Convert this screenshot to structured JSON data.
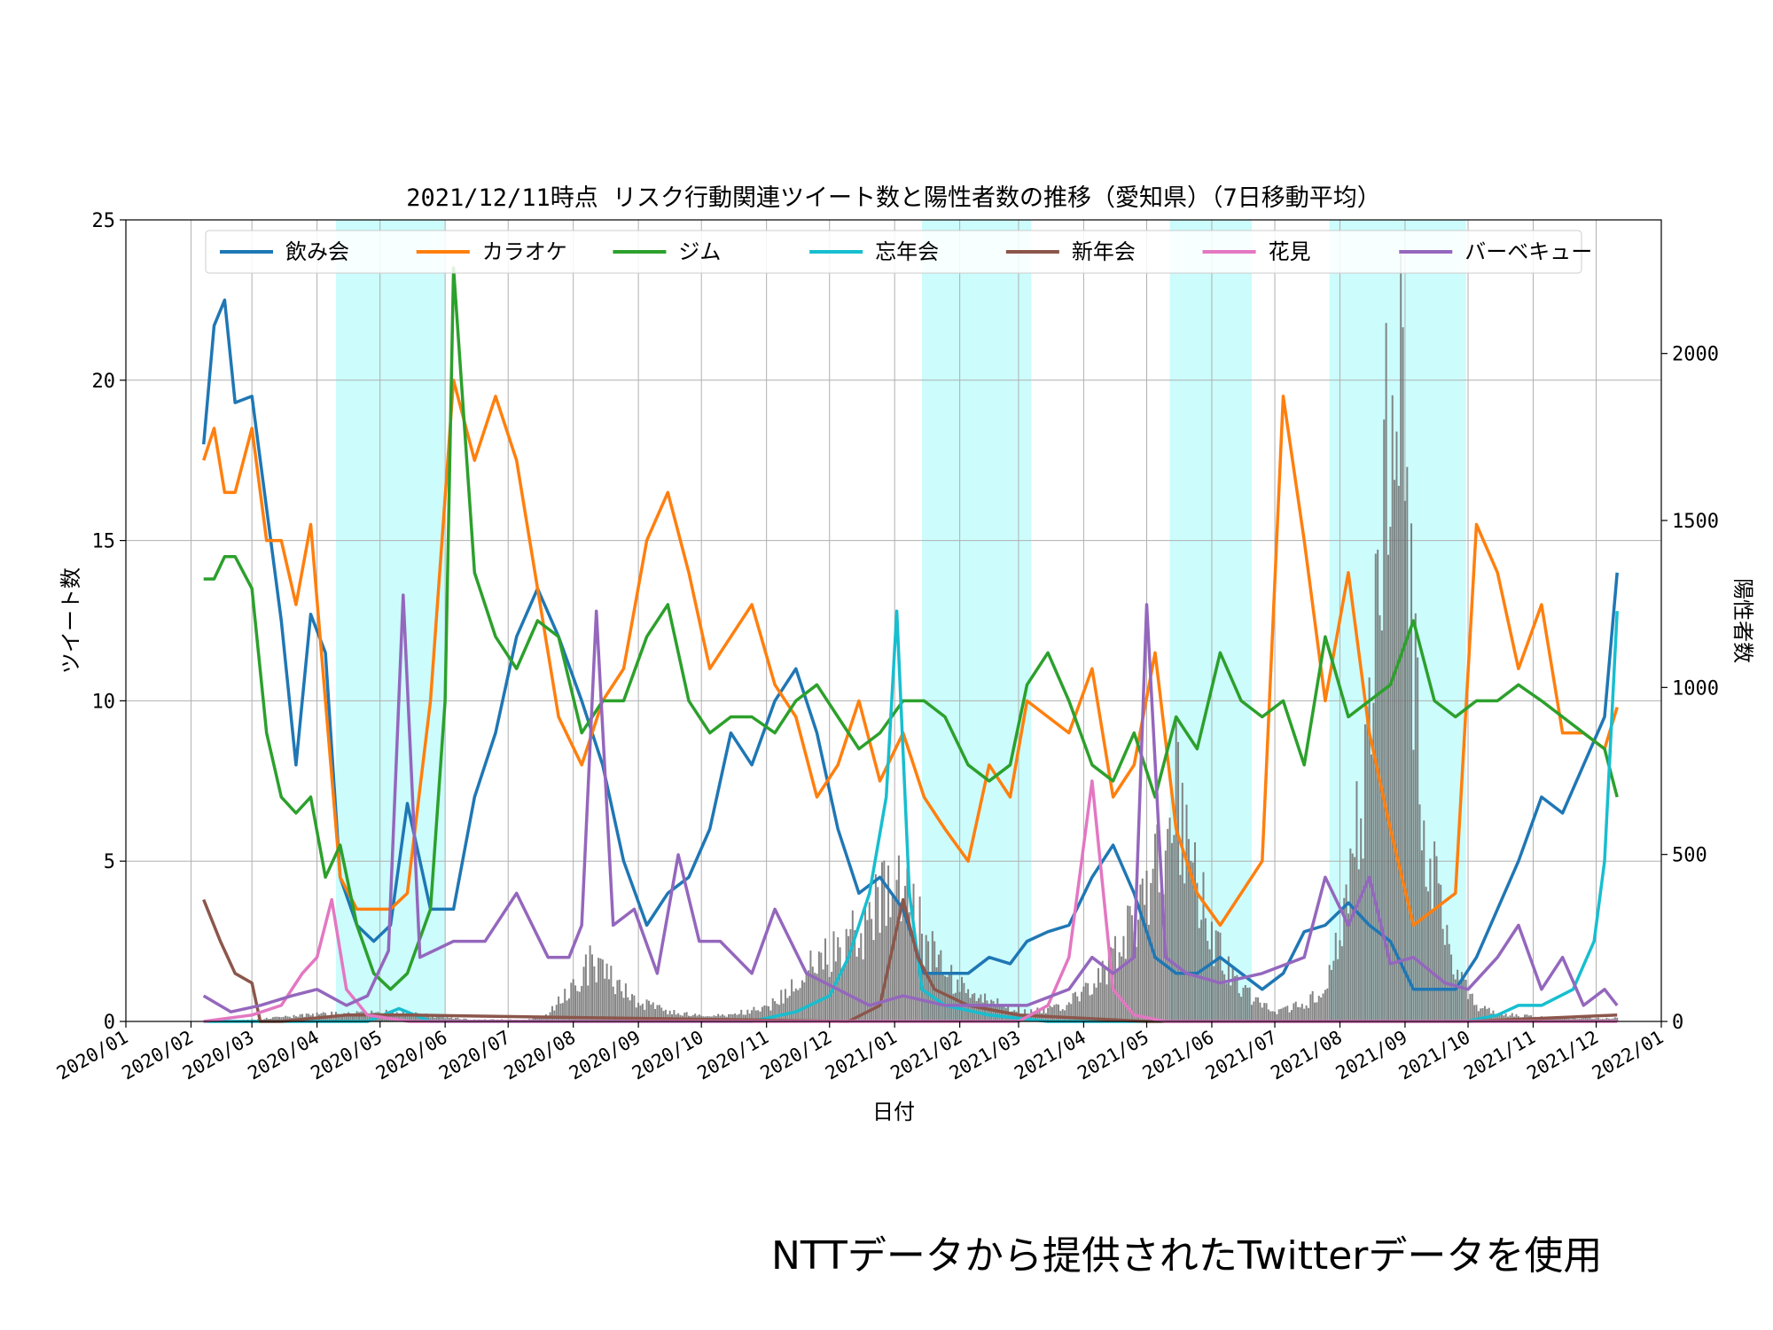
{
  "chart_data": {
    "type": "line",
    "title": "2021/12/11時点 リスク行動関連ツイート数と陽性者数の推移（愛知県）（7日移動平均）",
    "xlabel": "日付",
    "ylabel": "ツイート数",
    "y2label": "陽性者数",
    "xlim": [
      "2020-01-01",
      "2022-01-01"
    ],
    "ylim": [
      0,
      25
    ],
    "y2lim": [
      0,
      2400
    ],
    "xticks": [
      "2020/01",
      "2020/02",
      "2020/03",
      "2020/04",
      "2020/05",
      "2020/06",
      "2020/07",
      "2020/08",
      "2020/09",
      "2020/10",
      "2020/11",
      "2020/12",
      "2021/01",
      "2021/02",
      "2021/03",
      "2021/04",
      "2021/05",
      "2021/06",
      "2021/07",
      "2021/08",
      "2021/09",
      "2021/10",
      "2021/11",
      "2021/12",
      "2022/01"
    ],
    "yticks": [
      0,
      5,
      10,
      15,
      20,
      25
    ],
    "y2ticks": [
      0,
      500,
      1000,
      1500,
      2000
    ],
    "grid": true,
    "legend_position": "top",
    "shaded_periods": [
      [
        "2020-04-10",
        "2020-06-01"
      ],
      [
        "2021-01-14",
        "2021-03-07"
      ],
      [
        "2021-05-12",
        "2021-06-20"
      ],
      [
        "2021-07-27",
        "2021-09-30"
      ]
    ],
    "series": [
      {
        "name": "飲み会",
        "color": "#1f77b4",
        "x": [
          "2020-02-07",
          "2020-02-12",
          "2020-02-17",
          "2020-02-22",
          "2020-03-01",
          "2020-03-08",
          "2020-03-15",
          "2020-03-22",
          "2020-03-29",
          "2020-04-05",
          "2020-04-12",
          "2020-04-20",
          "2020-04-28",
          "2020-05-06",
          "2020-05-14",
          "2020-05-25",
          "2020-06-05",
          "2020-06-15",
          "2020-06-25",
          "2020-07-05",
          "2020-07-15",
          "2020-07-25",
          "2020-08-05",
          "2020-08-15",
          "2020-08-25",
          "2020-09-05",
          "2020-09-15",
          "2020-09-25",
          "2020-10-05",
          "2020-10-15",
          "2020-10-25",
          "2020-11-05",
          "2020-11-15",
          "2020-11-25",
          "2020-12-05",
          "2020-12-15",
          "2020-12-25",
          "2021-01-05",
          "2021-01-15",
          "2021-01-25",
          "2021-02-05",
          "2021-02-15",
          "2021-02-25",
          "2021-03-05",
          "2021-03-15",
          "2021-03-25",
          "2021-04-05",
          "2021-04-15",
          "2021-04-25",
          "2021-05-05",
          "2021-05-15",
          "2021-05-25",
          "2021-06-05",
          "2021-06-15",
          "2021-06-25",
          "2021-07-05",
          "2021-07-15",
          "2021-07-25",
          "2021-08-05",
          "2021-08-15",
          "2021-08-25",
          "2021-09-05",
          "2021-09-15",
          "2021-09-25",
          "2021-10-05",
          "2021-10-15",
          "2021-10-25",
          "2021-11-05",
          "2021-11-15",
          "2021-11-25",
          "2021-12-05",
          "2021-12-11"
        ],
        "y": [
          18,
          21.7,
          22.5,
          19.3,
          19.5,
          16,
          12.5,
          8,
          12.7,
          11.5,
          4.5,
          3,
          2.5,
          3,
          6.8,
          3.5,
          3.5,
          7,
          9,
          12,
          13.5,
          12,
          10,
          8,
          5,
          3,
          4,
          4.5,
          6,
          9,
          8,
          10,
          11,
          9,
          6,
          4,
          4.5,
          3.5,
          1.5,
          1.5,
          1.5,
          2,
          1.8,
          2.5,
          2.8,
          3,
          4.5,
          5.5,
          4,
          2,
          1.5,
          1.5,
          2,
          1.5,
          1,
          1.5,
          2.8,
          3,
          3.7,
          3,
          2.5,
          1,
          1,
          1,
          2,
          3.5,
          5,
          7,
          6.5,
          8,
          9.5,
          14
        ]
      },
      {
        "name": "カラオケ",
        "color": "#ff7f0e",
        "x": [
          "2020-02-07",
          "2020-02-12",
          "2020-02-17",
          "2020-02-22",
          "2020-03-01",
          "2020-03-08",
          "2020-03-15",
          "2020-03-22",
          "2020-03-29",
          "2020-04-05",
          "2020-04-12",
          "2020-04-20",
          "2020-04-28",
          "2020-05-06",
          "2020-05-14",
          "2020-05-25",
          "2020-06-05",
          "2020-06-15",
          "2020-06-25",
          "2020-07-05",
          "2020-07-15",
          "2020-07-25",
          "2020-08-05",
          "2020-08-15",
          "2020-08-25",
          "2020-09-05",
          "2020-09-15",
          "2020-09-25",
          "2020-10-05",
          "2020-10-15",
          "2020-10-25",
          "2020-11-05",
          "2020-11-15",
          "2020-11-25",
          "2020-12-05",
          "2020-12-15",
          "2020-12-25",
          "2021-01-05",
          "2021-01-15",
          "2021-01-25",
          "2021-02-05",
          "2021-02-15",
          "2021-02-25",
          "2021-03-05",
          "2021-03-15",
          "2021-03-25",
          "2021-04-05",
          "2021-04-15",
          "2021-04-25",
          "2021-05-05",
          "2021-05-15",
          "2021-05-25",
          "2021-06-05",
          "2021-06-15",
          "2021-06-25",
          "2021-07-05",
          "2021-07-15",
          "2021-07-25",
          "2021-08-05",
          "2021-08-15",
          "2021-08-25",
          "2021-09-05",
          "2021-09-15",
          "2021-09-25",
          "2021-10-05",
          "2021-10-15",
          "2021-10-25",
          "2021-11-05",
          "2021-11-15",
          "2021-11-25",
          "2021-12-05",
          "2021-12-11"
        ],
        "y": [
          17.5,
          18.5,
          16.5,
          16.5,
          18.5,
          15,
          15,
          13,
          15.5,
          10,
          4.5,
          3.5,
          3.5,
          3.5,
          4,
          10,
          20,
          17.5,
          19.5,
          17.5,
          13.5,
          9.5,
          8,
          10,
          11,
          15,
          16.5,
          14,
          11,
          12,
          13,
          10.5,
          9.5,
          7,
          8,
          10,
          7.5,
          9,
          7,
          6,
          5,
          8,
          7,
          10,
          9.5,
          9,
          11,
          7,
          8,
          11.5,
          6,
          4,
          3,
          4,
          5,
          19.5,
          15,
          10,
          14,
          9,
          6,
          3,
          3.5,
          4,
          15.5,
          14,
          11,
          13,
          9,
          9,
          8.5,
          9.8
        ]
      },
      {
        "name": "ジム",
        "color": "#2ca02c",
        "x": [
          "2020-02-07",
          "2020-02-12",
          "2020-02-17",
          "2020-02-22",
          "2020-03-01",
          "2020-03-08",
          "2020-03-15",
          "2020-03-22",
          "2020-03-29",
          "2020-04-05",
          "2020-04-12",
          "2020-04-20",
          "2020-04-28",
          "2020-05-06",
          "2020-05-14",
          "2020-05-25",
          "2020-06-01",
          "2020-06-05",
          "2020-06-15",
          "2020-06-25",
          "2020-07-05",
          "2020-07-15",
          "2020-07-25",
          "2020-08-05",
          "2020-08-15",
          "2020-08-25",
          "2020-09-05",
          "2020-09-15",
          "2020-09-25",
          "2020-10-05",
          "2020-10-15",
          "2020-10-25",
          "2020-11-05",
          "2020-11-15",
          "2020-11-25",
          "2020-12-05",
          "2020-12-15",
          "2020-12-25",
          "2021-01-05",
          "2021-01-15",
          "2021-01-25",
          "2021-02-05",
          "2021-02-15",
          "2021-02-25",
          "2021-03-05",
          "2021-03-15",
          "2021-03-25",
          "2021-04-05",
          "2021-04-15",
          "2021-04-25",
          "2021-05-05",
          "2021-05-15",
          "2021-05-25",
          "2021-06-05",
          "2021-06-15",
          "2021-06-25",
          "2021-07-05",
          "2021-07-15",
          "2021-07-25",
          "2021-08-05",
          "2021-08-15",
          "2021-08-25",
          "2021-09-05",
          "2021-09-15",
          "2021-09-25",
          "2021-10-05",
          "2021-10-15",
          "2021-10-25",
          "2021-11-05",
          "2021-11-15",
          "2021-11-25",
          "2021-12-05",
          "2021-12-11"
        ],
        "y": [
          13.8,
          13.8,
          14.5,
          14.5,
          13.5,
          9,
          7,
          6.5,
          7,
          4.5,
          5.5,
          3,
          1.5,
          1,
          1.5,
          3.5,
          10,
          23.5,
          14,
          12,
          11,
          12.5,
          12,
          9,
          10,
          10,
          12,
          13,
          10,
          9,
          9.5,
          9.5,
          9,
          10,
          10.5,
          9.5,
          8.5,
          9,
          10,
          10,
          9.5,
          8,
          7.5,
          8,
          10.5,
          11.5,
          10,
          8,
          7.5,
          9,
          7,
          9.5,
          8.5,
          11.5,
          10,
          9.5,
          10,
          8,
          12,
          9.5,
          10,
          10.5,
          12.5,
          10,
          9.5,
          10,
          10,
          10.5,
          10,
          9.5,
          9,
          8.5,
          7
        ]
      },
      {
        "name": "忘年会",
        "color": "#17becf",
        "x": [
          "2020-02-07",
          "2020-04-25",
          "2020-05-10",
          "2020-05-25",
          "2020-10-25",
          "2020-11-15",
          "2020-12-01",
          "2020-12-10",
          "2020-12-20",
          "2020-12-28",
          "2021-01-02",
          "2021-01-08",
          "2021-01-14",
          "2021-01-25",
          "2021-02-15",
          "2021-03-15",
          "2021-06-01",
          "2021-09-30",
          "2021-10-15",
          "2021-10-25",
          "2021-11-05",
          "2021-11-20",
          "2021-11-30",
          "2021-12-05",
          "2021-12-11"
        ],
        "y": [
          0,
          0,
          0.4,
          0,
          0,
          0.3,
          0.8,
          2,
          4,
          7,
          12.8,
          4,
          1,
          0.5,
          0.2,
          0,
          0,
          0,
          0.2,
          0.5,
          0.5,
          1,
          2.5,
          5,
          12.8
        ]
      },
      {
        "name": "新年会",
        "color": "#8c564b",
        "x": [
          "2020-02-07",
          "2020-02-15",
          "2020-02-22",
          "2020-03-01",
          "2020-03-05",
          "2020-03-15",
          "2020-04-15",
          "2020-05-15",
          "2020-12-10",
          "2020-12-25",
          "2021-01-05",
          "2021-01-12",
          "2021-01-20",
          "2021-02-05",
          "2021-03-01",
          "2021-05-01",
          "2021-10-01",
          "2021-12-11"
        ],
        "y": [
          3.8,
          2.5,
          1.5,
          1.2,
          0,
          0,
          0.2,
          0.2,
          0,
          0.5,
          3.8,
          2,
          1,
          0.5,
          0.2,
          0,
          0,
          0.2
        ]
      },
      {
        "name": "花見",
        "color": "#e377c2",
        "x": [
          "2020-02-07",
          "2020-03-01",
          "2020-03-15",
          "2020-03-25",
          "2020-04-01",
          "2020-04-08",
          "2020-04-15",
          "2020-04-25",
          "2020-05-15",
          "2021-03-01",
          "2021-03-15",
          "2021-03-25",
          "2021-03-31",
          "2021-04-05",
          "2021-04-15",
          "2021-04-25",
          "2021-05-10",
          "2021-12-11"
        ],
        "y": [
          0,
          0.2,
          0.5,
          1.5,
          2,
          3.8,
          1,
          0.2,
          0,
          0,
          0.5,
          2,
          5,
          7.5,
          1,
          0.2,
          0,
          0
        ]
      },
      {
        "name": "バーベキュー",
        "color": "#9467bd",
        "x": [
          "2020-02-07",
          "2020-02-20",
          "2020-03-05",
          "2020-03-20",
          "2020-04-01",
          "2020-04-15",
          "2020-04-25",
          "2020-05-05",
          "2020-05-12",
          "2020-05-20",
          "2020-06-05",
          "2020-06-20",
          "2020-07-05",
          "2020-07-20",
          "2020-07-30",
          "2020-08-05",
          "2020-08-12",
          "2020-08-20",
          "2020-08-30",
          "2020-09-10",
          "2020-09-20",
          "2020-09-30",
          "2020-10-10",
          "2020-10-25",
          "2020-11-05",
          "2020-11-20",
          "2020-12-05",
          "2020-12-20",
          "2021-01-05",
          "2021-01-25",
          "2021-02-15",
          "2021-03-05",
          "2021-03-25",
          "2021-04-05",
          "2021-04-15",
          "2021-04-25",
          "2021-05-01",
          "2021-05-10",
          "2021-05-20",
          "2021-06-05",
          "2021-06-25",
          "2021-07-15",
          "2021-07-25",
          "2021-08-05",
          "2021-08-15",
          "2021-08-25",
          "2021-09-05",
          "2021-09-20",
          "2021-10-01",
          "2021-10-15",
          "2021-10-25",
          "2021-11-05",
          "2021-11-15",
          "2021-11-25",
          "2021-12-05",
          "2021-12-11"
        ],
        "y": [
          0.8,
          0.3,
          0.5,
          0.8,
          1,
          0.5,
          0.8,
          2.2,
          13.3,
          2,
          2.5,
          2.5,
          4,
          2,
          2,
          3,
          12.8,
          3,
          3.5,
          1.5,
          5.2,
          2.5,
          2.5,
          1.5,
          3.5,
          1.5,
          1,
          0.5,
          0.8,
          0.5,
          0.5,
          0.5,
          1,
          2,
          1.5,
          2,
          13,
          2,
          1.5,
          1.2,
          1.5,
          2,
          4.5,
          3,
          4.5,
          1.8,
          2,
          1.2,
          1,
          2,
          3,
          1,
          2,
          0.5,
          1,
          0.5
        ]
      }
    ],
    "bars": {
      "name": "陽性者数",
      "color": "#707070",
      "axis": "y2",
      "x": [
        "2020-02-07",
        "2020-03-01",
        "2020-04-01",
        "2020-05-01",
        "2020-06-15",
        "2020-07-10",
        "2020-07-20",
        "2020-07-31",
        "2020-08-10",
        "2020-08-20",
        "2020-08-31",
        "2020-09-15",
        "2020-10-01",
        "2020-10-15",
        "2020-11-01",
        "2020-11-10",
        "2020-11-20",
        "2020-12-01",
        "2020-12-10",
        "2020-12-20",
        "2020-12-31",
        "2021-01-08",
        "2021-01-15",
        "2021-01-25",
        "2021-02-05",
        "2021-02-20",
        "2021-03-05",
        "2021-03-20",
        "2021-04-01",
        "2021-04-10",
        "2021-04-20",
        "2021-04-30",
        "2021-05-08",
        "2021-05-15",
        "2021-05-25",
        "2021-06-05",
        "2021-06-15",
        "2021-06-30",
        "2021-07-15",
        "2021-07-25",
        "2021-08-01",
        "2021-08-08",
        "2021-08-15",
        "2021-08-20",
        "2021-08-25",
        "2021-08-31",
        "2021-09-05",
        "2021-09-10",
        "2021-09-15",
        "2021-09-25",
        "2021-10-05",
        "2021-10-20",
        "2021-11-10",
        "2021-12-11"
      ],
      "y": [
        0,
        5,
        20,
        30,
        5,
        5,
        20,
        100,
        180,
        120,
        60,
        30,
        15,
        20,
        40,
        80,
        150,
        200,
        250,
        300,
        400,
        400,
        250,
        150,
        80,
        50,
        30,
        40,
        80,
        150,
        250,
        350,
        500,
        700,
        400,
        200,
        100,
        30,
        50,
        100,
        250,
        500,
        900,
        1200,
        1800,
        1900,
        1100,
        600,
        400,
        150,
        40,
        20,
        10,
        10
      ]
    }
  },
  "footer": {
    "source_note": "NTTデータから提供されたTwitterデータを使用"
  }
}
